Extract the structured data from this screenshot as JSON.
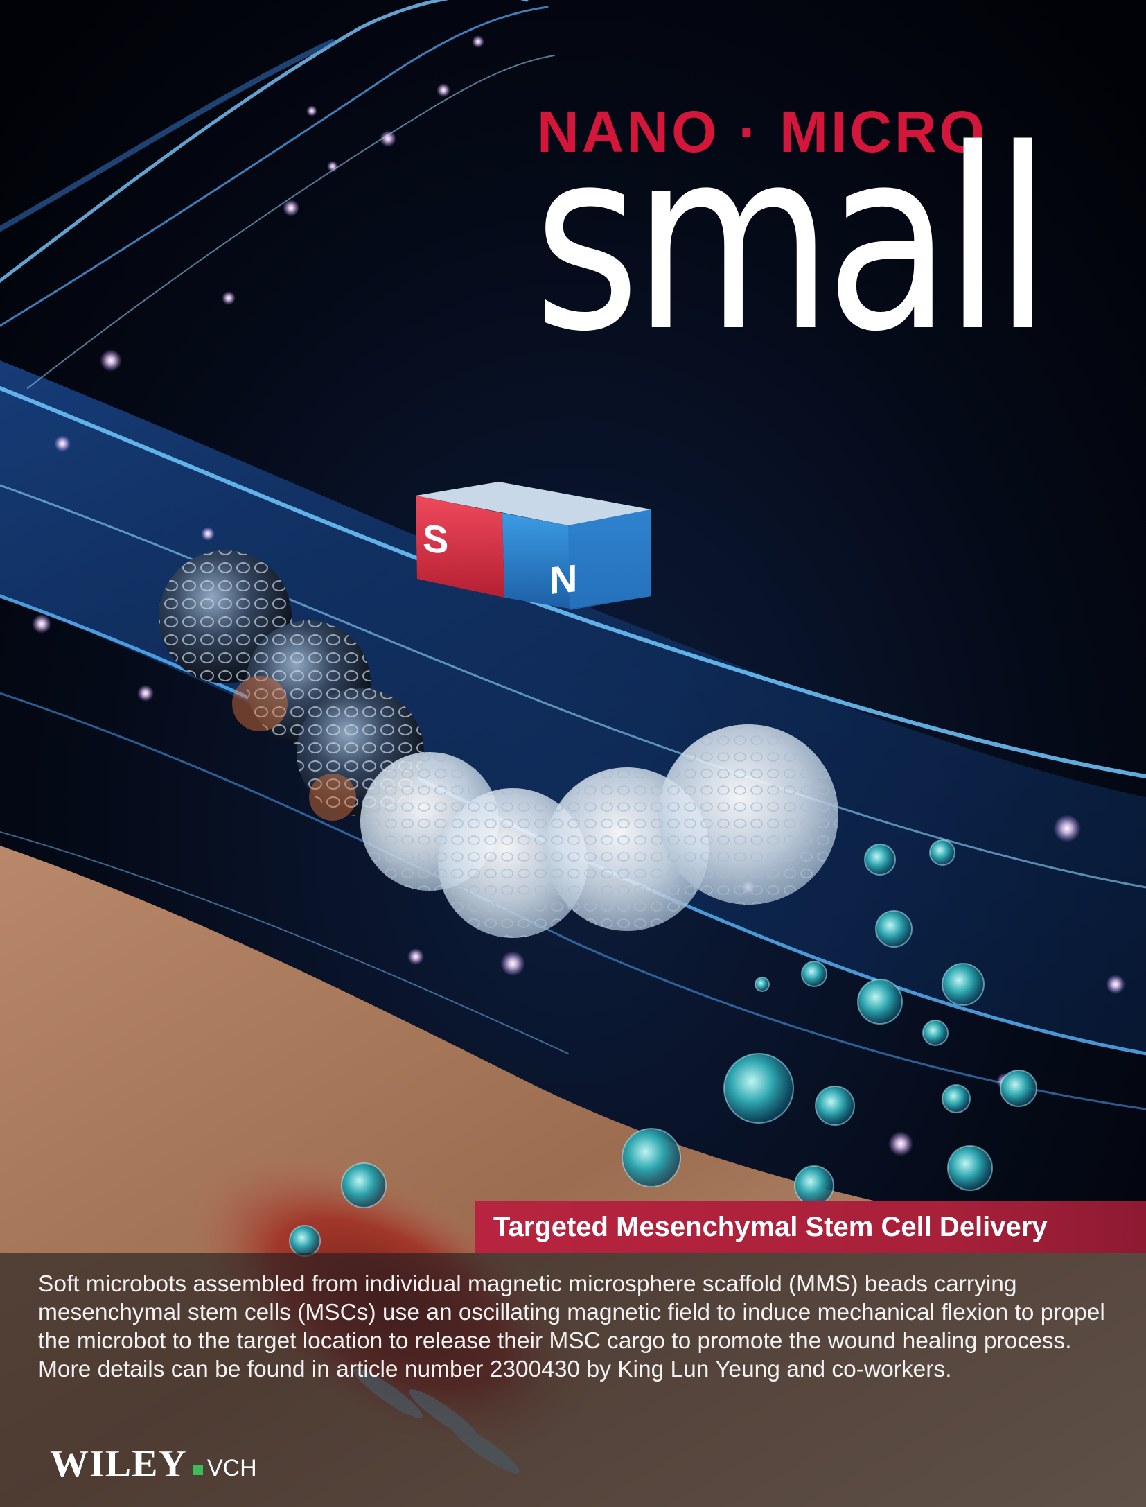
{
  "masthead": {
    "subtitle": "NANO · MICRO",
    "title": "small"
  },
  "magnet": {
    "south_label": "S",
    "north_label": "N"
  },
  "article": {
    "headline": "Targeted Mesenchymal Stem Cell Delivery",
    "caption": "Soft microbots assembled from individual magnetic microsphere scaffold (MMS) beads carrying mesenchymal stem cells (MSCs) use an oscillating magnetic field to induce mechanical flexion to propel the microbot to the target location to release their MSC cargo to promote the wound healing process. More details can be found in article number 2300430 by King Lun Yeung and co-workers."
  },
  "publisher": {
    "name": "WILEY",
    "imprint": "VCH"
  },
  "colors": {
    "masthead_red": "#d4163a",
    "banner_red": "#b8243f",
    "background": "#02040c",
    "wiley_green": "#3dbd5a"
  }
}
